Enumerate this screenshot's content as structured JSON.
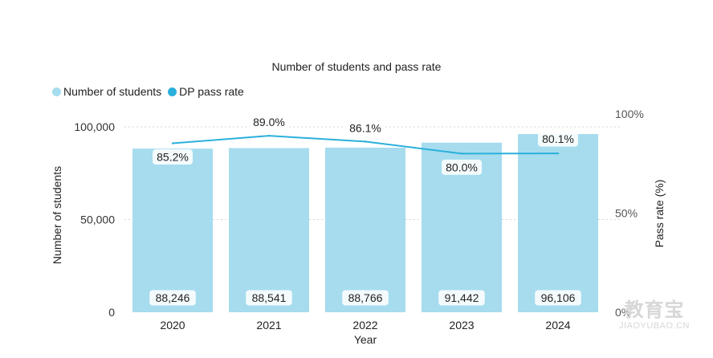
{
  "chart_data": {
    "type": "bar",
    "title": "Number of students and pass rate",
    "categories": [
      "2020",
      "2021",
      "2022",
      "2023",
      "2024"
    ],
    "series": [
      {
        "name": "Number of students",
        "type": "bar",
        "axis": "left",
        "values": [
          88246,
          88541,
          88766,
          91442,
          96106
        ],
        "labels": [
          "88,246",
          "88,541",
          "88,766",
          "91,442",
          "96,106"
        ],
        "color": "#a6dcee"
      },
      {
        "name": "DP pass rate",
        "type": "line",
        "axis": "right",
        "values": [
          85.2,
          89.0,
          86.1,
          80.0,
          80.1
        ],
        "labels": [
          "85.2%",
          "89.0%",
          "86.1%",
          "80.0%",
          "80.1%"
        ],
        "color": "#2bb0dc"
      }
    ],
    "xlabel": "Year",
    "ylabel": "Number of students",
    "y2label": "Pass rate (%)",
    "ylim": [
      0,
      100000
    ],
    "y2lim": [
      0,
      100
    ],
    "yticks": [
      0,
      50000,
      100000
    ],
    "ytick_labels": [
      "0",
      "50,000",
      "100,000"
    ],
    "y2ticks": [
      0,
      50,
      100
    ],
    "y2tick_labels": [
      "0%",
      "50%",
      "100%"
    ],
    "grid": true,
    "legend": "top-left"
  },
  "watermark": {
    "text": "教育宝",
    "url": "JIAOYUBAO.CN"
  }
}
